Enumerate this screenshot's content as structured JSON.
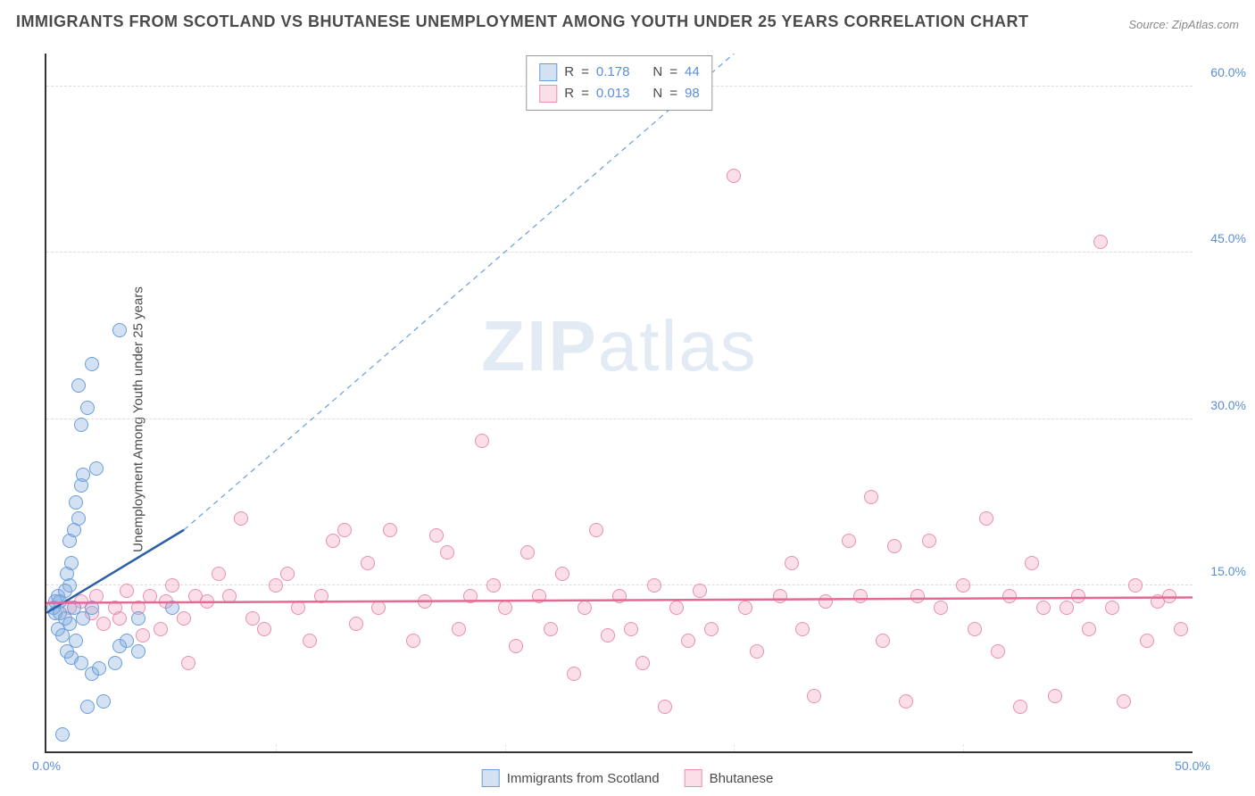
{
  "title": "IMMIGRANTS FROM SCOTLAND VS BHUTANESE UNEMPLOYMENT AMONG YOUTH UNDER 25 YEARS CORRELATION CHART",
  "source": "Source: ZipAtlas.com",
  "ylabel": "Unemployment Among Youth under 25 years",
  "watermark_a": "ZIP",
  "watermark_b": "atlas",
  "chart": {
    "type": "scatter",
    "background_color": "#ffffff",
    "grid_color": "#dddddd",
    "axis_color": "#333333",
    "tick_label_color": "#5b8fd6",
    "xlim": [
      0,
      50
    ],
    "ylim": [
      0,
      63
    ],
    "xtick_labels": [
      {
        "pos": 0,
        "label": "0.0%"
      },
      {
        "pos": 50,
        "label": "50.0%"
      }
    ],
    "xtick_minor": [
      10,
      20,
      30,
      40
    ],
    "ytick_labels": [
      {
        "pos": 15,
        "label": "15.0%"
      },
      {
        "pos": 30,
        "label": "30.0%"
      },
      {
        "pos": 45,
        "label": "45.0%"
      },
      {
        "pos": 60,
        "label": "60.0%"
      }
    ],
    "marker_diameter": 16,
    "series": [
      {
        "name": "Immigrants from Scotland",
        "fill_color": "rgba(128, 170, 220, 0.35)",
        "stroke_color": "#6a9edb",
        "r_value": "0.178",
        "n_value": "44",
        "trend_solid": {
          "x1": 0,
          "y1": 12.5,
          "x2": 6,
          "y2": 20,
          "color": "#2c5fa8",
          "width": 2.5
        },
        "trend_dashed": {
          "x1": 6,
          "y1": 20,
          "x2": 30,
          "y2": 63,
          "color": "#6a9edb",
          "width": 1.2,
          "dash": "6,5"
        },
        "points": [
          [
            0.3,
            13
          ],
          [
            0.4,
            12.5
          ],
          [
            0.5,
            14
          ],
          [
            0.6,
            13.5
          ],
          [
            0.8,
            12
          ],
          [
            0.5,
            11
          ],
          [
            0.7,
            10.5
          ],
          [
            1.0,
            15
          ],
          [
            1.2,
            13
          ],
          [
            0.9,
            9
          ],
          [
            1.1,
            8.5
          ],
          [
            1.5,
            8
          ],
          [
            2.0,
            7
          ],
          [
            2.3,
            7.5
          ],
          [
            0.7,
            1.5
          ],
          [
            1.8,
            4
          ],
          [
            2.5,
            4.5
          ],
          [
            3.0,
            8
          ],
          [
            3.2,
            9.5
          ],
          [
            3.5,
            10
          ],
          [
            4.0,
            9
          ],
          [
            0.9,
            16
          ],
          [
            1.1,
            17
          ],
          [
            1.0,
            19
          ],
          [
            1.2,
            20
          ],
          [
            1.4,
            21
          ],
          [
            1.3,
            22.5
          ],
          [
            1.5,
            24
          ],
          [
            1.6,
            25
          ],
          [
            2.2,
            25.5
          ],
          [
            1.5,
            29.5
          ],
          [
            1.8,
            31
          ],
          [
            1.4,
            33
          ],
          [
            2.0,
            35
          ],
          [
            3.2,
            38
          ],
          [
            0.4,
            13.5
          ],
          [
            0.6,
            12.5
          ],
          [
            0.8,
            14.5
          ],
          [
            1.0,
            11.5
          ],
          [
            1.3,
            10
          ],
          [
            1.6,
            12
          ],
          [
            2.0,
            13
          ],
          [
            5.5,
            13
          ],
          [
            4.0,
            12
          ]
        ]
      },
      {
        "name": "Bhutanese",
        "fill_color": "rgba(240, 150, 180, 0.30)",
        "stroke_color": "#e98fb0",
        "r_value": "0.013",
        "n_value": "98",
        "trend_solid": {
          "x1": 0,
          "y1": 13.4,
          "x2": 50,
          "y2": 13.9,
          "color": "#e26a94",
          "width": 2.5
        },
        "points": [
          [
            1.0,
            13
          ],
          [
            1.5,
            13.5
          ],
          [
            2.0,
            12.5
          ],
          [
            2.2,
            14
          ],
          [
            2.5,
            11.5
          ],
          [
            3.0,
            13
          ],
          [
            3.2,
            12
          ],
          [
            3.5,
            14.5
          ],
          [
            4.0,
            13
          ],
          [
            4.2,
            10.5
          ],
          [
            4.5,
            14
          ],
          [
            5.0,
            11
          ],
          [
            5.2,
            13.5
          ],
          [
            5.5,
            15
          ],
          [
            6.0,
            12
          ],
          [
            6.2,
            8
          ],
          [
            6.5,
            14
          ],
          [
            7.0,
            13.5
          ],
          [
            7.5,
            16
          ],
          [
            8.0,
            14
          ],
          [
            8.5,
            21
          ],
          [
            9.0,
            12
          ],
          [
            9.5,
            11
          ],
          [
            10.0,
            15
          ],
          [
            10.5,
            16
          ],
          [
            11.0,
            13
          ],
          [
            11.5,
            10
          ],
          [
            12.0,
            14
          ],
          [
            12.5,
            19
          ],
          [
            13.0,
            20
          ],
          [
            13.5,
            11.5
          ],
          [
            14.0,
            17
          ],
          [
            14.5,
            13
          ],
          [
            15.0,
            20
          ],
          [
            16.0,
            10
          ],
          [
            16.5,
            13.5
          ],
          [
            17.0,
            19.5
          ],
          [
            17.5,
            18
          ],
          [
            18.0,
            11
          ],
          [
            18.5,
            14
          ],
          [
            19.0,
            28
          ],
          [
            19.5,
            15
          ],
          [
            20.0,
            13
          ],
          [
            20.5,
            9.5
          ],
          [
            21.0,
            18
          ],
          [
            21.5,
            14
          ],
          [
            22.0,
            11
          ],
          [
            22.5,
            16
          ],
          [
            23.0,
            7
          ],
          [
            23.5,
            13
          ],
          [
            24.0,
            20
          ],
          [
            24.5,
            10.5
          ],
          [
            25.0,
            14
          ],
          [
            25.5,
            11
          ],
          [
            26.0,
            8
          ],
          [
            26.5,
            15
          ],
          [
            27.0,
            4
          ],
          [
            27.5,
            13
          ],
          [
            28.0,
            10
          ],
          [
            28.5,
            14.5
          ],
          [
            29.0,
            11
          ],
          [
            30.0,
            52
          ],
          [
            30.5,
            13
          ],
          [
            31.0,
            9
          ],
          [
            32.0,
            14
          ],
          [
            32.5,
            17
          ],
          [
            33.0,
            11
          ],
          [
            33.5,
            5
          ],
          [
            34.0,
            13.5
          ],
          [
            35.0,
            19
          ],
          [
            35.5,
            14
          ],
          [
            36.0,
            23
          ],
          [
            36.5,
            10
          ],
          [
            37.0,
            18.5
          ],
          [
            37.5,
            4.5
          ],
          [
            38.0,
            14
          ],
          [
            38.5,
            19
          ],
          [
            39.0,
            13
          ],
          [
            40.0,
            15
          ],
          [
            40.5,
            11
          ],
          [
            41.0,
            21
          ],
          [
            41.5,
            9
          ],
          [
            42.0,
            14
          ],
          [
            42.5,
            4
          ],
          [
            43.0,
            17
          ],
          [
            43.5,
            13
          ],
          [
            44.0,
            5
          ],
          [
            45.0,
            14
          ],
          [
            45.5,
            11
          ],
          [
            46.0,
            46
          ],
          [
            46.5,
            13
          ],
          [
            47.0,
            4.5
          ],
          [
            47.5,
            15
          ],
          [
            48.0,
            10
          ],
          [
            48.5,
            13.5
          ],
          [
            49.0,
            14
          ],
          [
            49.5,
            11
          ],
          [
            44.5,
            13
          ]
        ]
      }
    ]
  },
  "top_legend": {
    "r_label": "R",
    "n_label": "N",
    "eq": "="
  },
  "bottom_legend": {
    "items": [
      "Immigrants from Scotland",
      "Bhutanese"
    ]
  }
}
